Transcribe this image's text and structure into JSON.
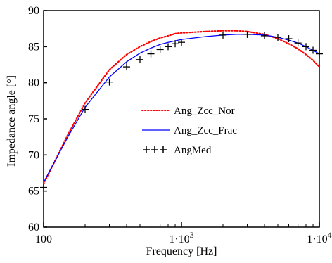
{
  "chart_data": {
    "type": "line",
    "xscale": "log",
    "xlabel": "Frequency [Hz]",
    "ylabel": "Impedance angle [°]",
    "xlim": [
      100,
      10000
    ],
    "ylim": [
      60,
      90
    ],
    "grid": false,
    "legend_position": "center-right",
    "x_ticks": [
      {
        "value": 100,
        "label": "100",
        "exp": ""
      },
      {
        "value": 1000,
        "label": "1·10",
        "exp": "3"
      },
      {
        "value": 10000,
        "label": "1·10",
        "exp": "4"
      }
    ],
    "y_ticks": [
      60,
      65,
      70,
      75,
      80,
      85,
      90
    ],
    "series": [
      {
        "name": "Ang_Zcc_Nor",
        "style": "dotted",
        "color": "#ff0000",
        "x": [
          100,
          150,
          200,
          300,
          400,
          500,
          600,
          700,
          800,
          900,
          1000,
          1500,
          2000,
          2500,
          3000,
          4000,
          5000,
          6000,
          7000,
          8000,
          9000,
          10000
        ],
        "y": [
          66.0,
          72.8,
          77.2,
          81.8,
          83.9,
          85.0,
          85.7,
          86.2,
          86.5,
          86.8,
          86.9,
          87.1,
          87.2,
          87.2,
          87.1,
          86.7,
          86.1,
          85.4,
          84.7,
          83.9,
          83.1,
          82.2
        ]
      },
      {
        "name": "Ang_Zcc_Frac",
        "style": "solid",
        "color": "#0000ff",
        "x": [
          100,
          150,
          200,
          300,
          400,
          500,
          600,
          700,
          800,
          900,
          1000,
          1500,
          2000,
          2500,
          3000,
          4000,
          5000,
          6000,
          7000,
          8000,
          9000,
          10000
        ],
        "y": [
          66.2,
          72.5,
          76.6,
          80.8,
          82.9,
          84.1,
          84.8,
          85.3,
          85.6,
          85.8,
          86.0,
          86.4,
          86.6,
          86.7,
          86.7,
          86.6,
          86.3,
          85.9,
          85.5,
          85.0,
          84.5,
          84.0
        ]
      },
      {
        "name": "AngMed",
        "style": "markers",
        "marker": "+",
        "color": "#000000",
        "x": [
          100,
          200,
          300,
          400,
          500,
          600,
          700,
          800,
          900,
          1000,
          2000,
          3000,
          4000,
          5000,
          6000,
          7000,
          8000,
          9000,
          10000
        ],
        "y": [
          65.5,
          76.3,
          80.1,
          82.2,
          83.2,
          84.0,
          84.6,
          85.0,
          85.4,
          85.6,
          86.6,
          86.7,
          86.5,
          86.3,
          86.1,
          85.5,
          85.0,
          84.5,
          84.0
        ]
      }
    ]
  }
}
